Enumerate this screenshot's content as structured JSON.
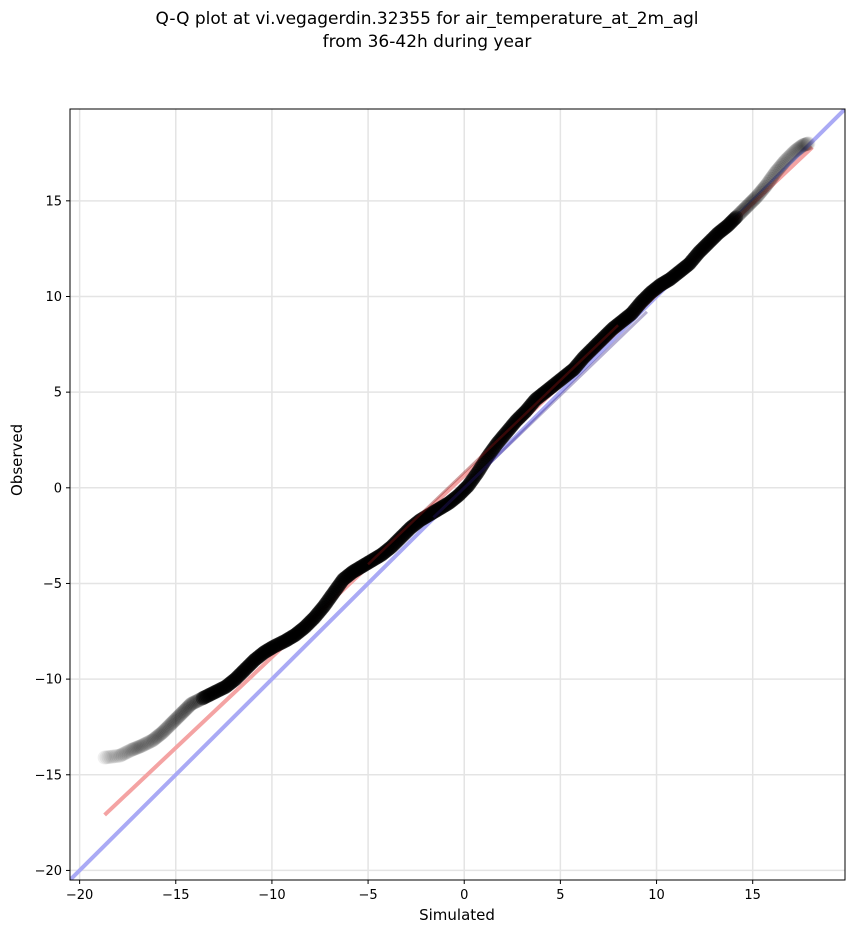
{
  "title": {
    "line1": "Q-Q plot at vi.vegagerdin.32355 for air_temperature_at_2m_agl",
    "line2": "from 36-42h during year"
  },
  "chart_data": {
    "type": "scatter",
    "xlabel": "Simulated",
    "ylabel": "Observed",
    "xlim": [
      -20.5,
      19.8
    ],
    "ylim": [
      -20.5,
      19.8
    ],
    "xticks": [
      -20,
      -15,
      -10,
      -5,
      0,
      5,
      10,
      15
    ],
    "yticks": [
      -20,
      -15,
      -10,
      -5,
      0,
      5,
      10,
      15
    ],
    "xtick_labels": [
      "−20",
      "−15",
      "−10",
      "−5",
      "0",
      "5",
      "10",
      "15"
    ],
    "ytick_labels": [
      "−20",
      "−15",
      "−10",
      "−5",
      "0",
      "5",
      "10",
      "15"
    ],
    "grid": true,
    "series": [
      {
        "kind": "quantiles",
        "color": "#000000",
        "points": [
          [
            -18.7,
            -14.1
          ],
          [
            -17.9,
            -14.0
          ],
          [
            -17.3,
            -13.7
          ],
          [
            -16.8,
            -13.5
          ],
          [
            -16.2,
            -13.2
          ],
          [
            -15.7,
            -12.8
          ],
          [
            -15.2,
            -12.3
          ],
          [
            -14.7,
            -11.8
          ],
          [
            -14.2,
            -11.3
          ],
          [
            -13.6,
            -11.0
          ],
          [
            -13.0,
            -10.7
          ],
          [
            -12.4,
            -10.4
          ],
          [
            -11.9,
            -10.0
          ],
          [
            -11.4,
            -9.5
          ],
          [
            -10.9,
            -9.0
          ],
          [
            -10.4,
            -8.6
          ],
          [
            -9.9,
            -8.3
          ],
          [
            -9.3,
            -8.0
          ],
          [
            -8.8,
            -7.7
          ],
          [
            -8.3,
            -7.3
          ],
          [
            -7.8,
            -6.8
          ],
          [
            -7.3,
            -6.2
          ],
          [
            -6.8,
            -5.5
          ],
          [
            -6.3,
            -4.8
          ],
          [
            -5.8,
            -4.4
          ],
          [
            -5.3,
            -4.1
          ],
          [
            -4.8,
            -3.8
          ],
          [
            -4.3,
            -3.5
          ],
          [
            -3.8,
            -3.1
          ],
          [
            -3.3,
            -2.6
          ],
          [
            -2.8,
            -2.1
          ],
          [
            -2.3,
            -1.7
          ],
          [
            -1.8,
            -1.4
          ],
          [
            -1.3,
            -1.1
          ],
          [
            -0.8,
            -0.8
          ],
          [
            -0.3,
            -0.4
          ],
          [
            0.2,
            0.1
          ],
          [
            0.7,
            0.8
          ],
          [
            1.2,
            1.6
          ],
          [
            1.7,
            2.3
          ],
          [
            2.2,
            2.9
          ],
          [
            2.7,
            3.5
          ],
          [
            3.2,
            4.0
          ],
          [
            3.7,
            4.6
          ],
          [
            4.2,
            5.0
          ],
          [
            4.7,
            5.4
          ],
          [
            5.2,
            5.8
          ],
          [
            5.7,
            6.2
          ],
          [
            6.2,
            6.8
          ],
          [
            6.7,
            7.3
          ],
          [
            7.2,
            7.8
          ],
          [
            7.7,
            8.3
          ],
          [
            8.2,
            8.7
          ],
          [
            8.7,
            9.1
          ],
          [
            9.2,
            9.7
          ],
          [
            9.7,
            10.2
          ],
          [
            10.2,
            10.6
          ],
          [
            10.7,
            10.9
          ],
          [
            11.2,
            11.3
          ],
          [
            11.7,
            11.7
          ],
          [
            12.2,
            12.3
          ],
          [
            12.7,
            12.8
          ],
          [
            13.2,
            13.3
          ],
          [
            13.7,
            13.7
          ],
          [
            14.2,
            14.2
          ],
          [
            14.7,
            14.7
          ],
          [
            15.2,
            15.2
          ],
          [
            15.7,
            15.8
          ],
          [
            16.2,
            16.5
          ],
          [
            16.7,
            17.1
          ],
          [
            17.2,
            17.6
          ],
          [
            17.6,
            17.9
          ],
          [
            17.9,
            18.0
          ]
        ]
      }
    ],
    "identity_line": {
      "color": "#aaaaf5",
      "from": [
        -20.5,
        -20.5
      ],
      "to": [
        19.8,
        19.8
      ]
    },
    "fit_line": {
      "color": "#f4a3a3",
      "from": [
        -18.7,
        -17.1
      ],
      "to": [
        18.1,
        17.8
      ]
    }
  }
}
